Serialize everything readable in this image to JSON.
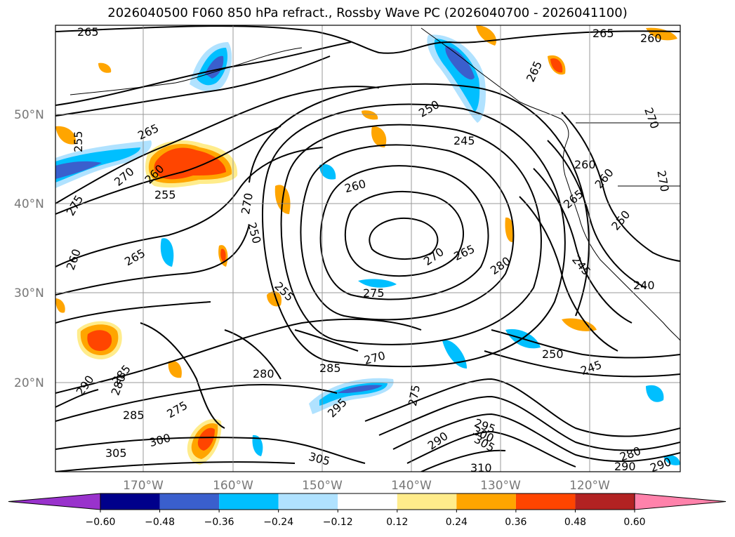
{
  "title": "2026040500 F060 850 hPa refract., Rossby Wave PC (2026040700 - 2026041100)",
  "map": {
    "region": "North-East Pacific",
    "lon_range": [
      -180,
      -110
    ],
    "lat_range": [
      10,
      60
    ],
    "lat_labels": [
      "50°N",
      "40°N",
      "30°N",
      "20°N"
    ],
    "lon_labels": [
      "170°W",
      "160°W",
      "150°W",
      "140°W",
      "130°W",
      "120°W"
    ],
    "contour_labels": [
      "265",
      "265",
      "260",
      "265",
      "265",
      "255",
      "270",
      "260",
      "255",
      "275",
      "250",
      "245",
      "260",
      "270",
      "250",
      "265",
      "260",
      "270",
      "265",
      "260",
      "250",
      "245",
      "270",
      "275",
      "265",
      "280",
      "255",
      "250",
      "245",
      "240",
      "280",
      "270",
      "285",
      "275",
      "290",
      "280",
      "285",
      "285",
      "275",
      "300",
      "295",
      "305",
      "305",
      "290",
      "295",
      "300",
      "305",
      "310",
      "280",
      "290",
      "290",
      "260",
      "270"
    ]
  },
  "colorbar": {
    "ticks": [
      "−0.60",
      "−0.48",
      "−0.36",
      "−0.24",
      "−0.12",
      "0.12",
      "0.24",
      "0.36",
      "0.48",
      "0.60"
    ],
    "colors": [
      "#9932cc",
      "#00008b",
      "#3a5fcd",
      "#00bfff",
      "#b0e2ff",
      "#ffffff",
      "#ffec8b",
      "#ffa500",
      "#ff4500",
      "#b22222",
      "#ff82ab"
    ]
  }
}
